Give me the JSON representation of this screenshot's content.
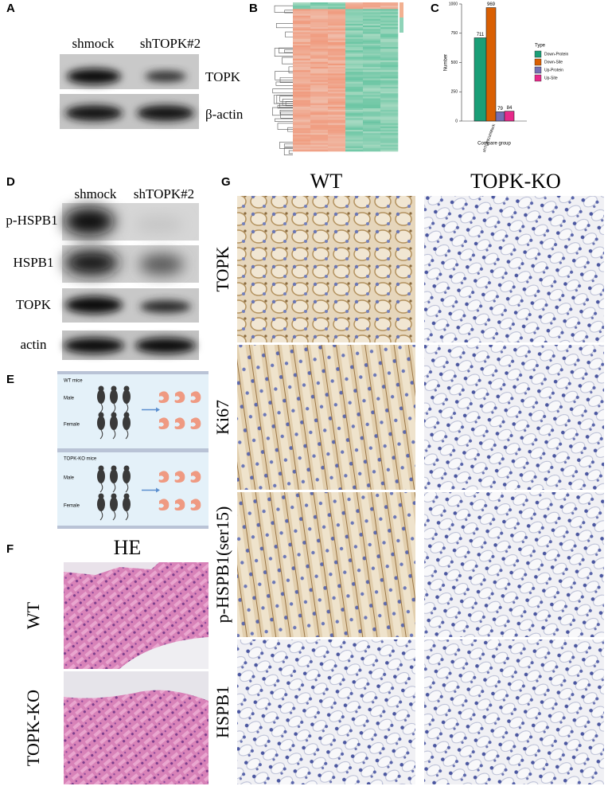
{
  "panels": {
    "A": {
      "label": "A",
      "lanes": [
        "shmock",
        "shTOPK#2"
      ],
      "rows": [
        "TOPK",
        "β-actin"
      ]
    },
    "B": {
      "label": "B"
    },
    "C": {
      "label": "C"
    },
    "D": {
      "label": "D",
      "lanes": [
        "shmock",
        "shTOPK#2"
      ],
      "rows": [
        "p-HSPB1",
        "HSPB1",
        "TOPK",
        "actin"
      ]
    },
    "E": {
      "label": "E",
      "groups": [
        {
          "title": "WT mice",
          "rows": [
            "Male",
            "Female"
          ]
        },
        {
          "title": "TOPK-KO mice",
          "rows": [
            "Male",
            "Female"
          ]
        }
      ]
    },
    "F": {
      "label": "F",
      "title": "HE",
      "rows": [
        "WT",
        "TOPK-KO"
      ]
    },
    "G": {
      "label": "G",
      "columns": [
        "WT",
        "TOPK-KO"
      ],
      "rows": [
        "TOPK",
        "Ki67",
        "p-HSPB1(ser15)",
        "HSPB1"
      ]
    }
  },
  "chart_data": {
    "type": "bar",
    "xlabel": "Compare group",
    "ylabel": "Number",
    "legend_title": "Type",
    "categories": [
      "shTOPK/shMock"
    ],
    "series": [
      {
        "name": "Down-Protein",
        "color": "#1b9e77",
        "values": [
          711
        ]
      },
      {
        "name": "Down-Site",
        "color": "#d95f02",
        "values": [
          969
        ]
      },
      {
        "name": "Up-Protein",
        "color": "#7570b3",
        "values": [
          79
        ]
      },
      {
        "name": "Up-Site",
        "color": "#e7298a",
        "values": [
          84
        ]
      }
    ],
    "ylim": [
      0,
      1000
    ],
    "yticks": [
      0,
      250,
      500,
      750,
      1000
    ]
  }
}
